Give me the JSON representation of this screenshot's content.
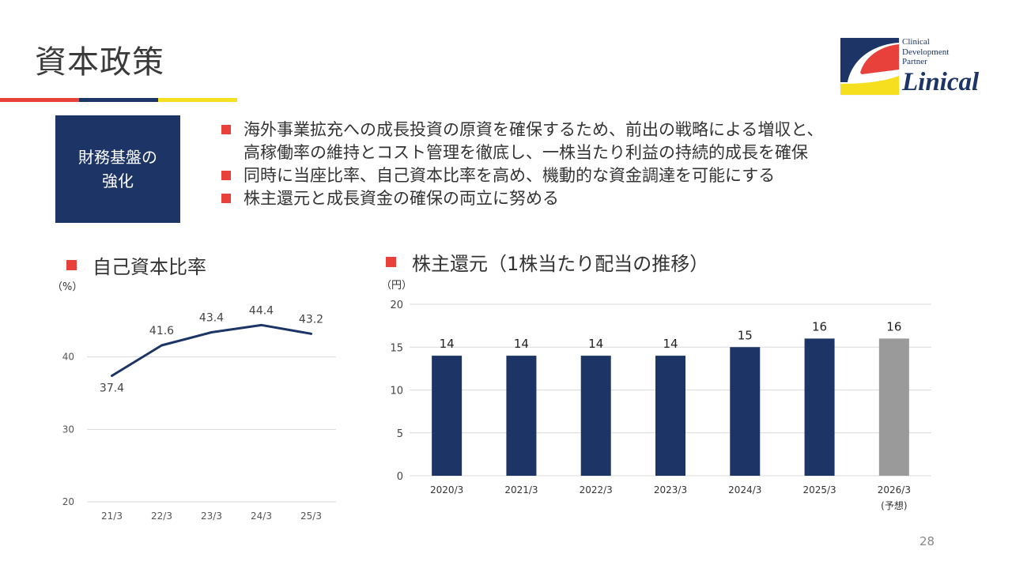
{
  "page": {
    "title": "資本政策",
    "page_number": "28"
  },
  "colors": {
    "accent_red": "#e8413c",
    "accent_navy": "#1c3566",
    "accent_yellow": "#f5df1e",
    "bullet_red": "#e8413c",
    "bar_navy": "#1c3566",
    "bar_forecast_gray": "#9a9a9a"
  },
  "logo": {
    "line1": "Clinical",
    "line2": "Development",
    "line3": "Partner",
    "name": "Linical"
  },
  "strategy": {
    "label_line1": "財務基盤の",
    "label_line2": "強化",
    "bullets": [
      "海外事業拡充への成長投資の原資を確保するため、前出の戦略による増収と、",
      "同時に当座比率、自己資本比率を高め、機動的な資金調達を可能にする",
      "株主還元と成長資金の確保の両立に努める"
    ],
    "bullet1_continuation": "高稼働率の維持とコスト管理を徹底し、一株当たり利益の持続的成長を確保"
  },
  "chart_data": [
    {
      "type": "line",
      "title": "自己資本比率",
      "unit_label": "（%）",
      "categories": [
        "21/3",
        "22/3",
        "23/3",
        "24/3",
        "25/3"
      ],
      "values": [
        37.4,
        41.6,
        43.4,
        44.4,
        43.2
      ],
      "value_labels": [
        "37.4",
        "41.6",
        "43.4",
        "44.4",
        "43.2"
      ],
      "ylim": [
        20,
        50
      ],
      "yticks": [
        "20",
        "30",
        "40"
      ],
      "grid": true,
      "series_color": "#1c3566"
    },
    {
      "type": "bar",
      "title": "株主還元（1株当たり配当の推移）",
      "unit_label": "（円）",
      "categories": [
        "2020/3",
        "2021/3",
        "2022/3",
        "2023/3",
        "2024/3",
        "2025/3",
        "2026/3"
      ],
      "forecast_note": "(予想)",
      "values": [
        14,
        14,
        14,
        14,
        15,
        16,
        16
      ],
      "value_labels": [
        "14",
        "14",
        "14",
        "14",
        "15",
        "16",
        "16"
      ],
      "forecast": [
        false,
        false,
        false,
        false,
        false,
        false,
        true
      ],
      "ylim": [
        0,
        20
      ],
      "yticks": [
        "0",
        "5",
        "10",
        "15",
        "20"
      ],
      "grid": true
    }
  ]
}
